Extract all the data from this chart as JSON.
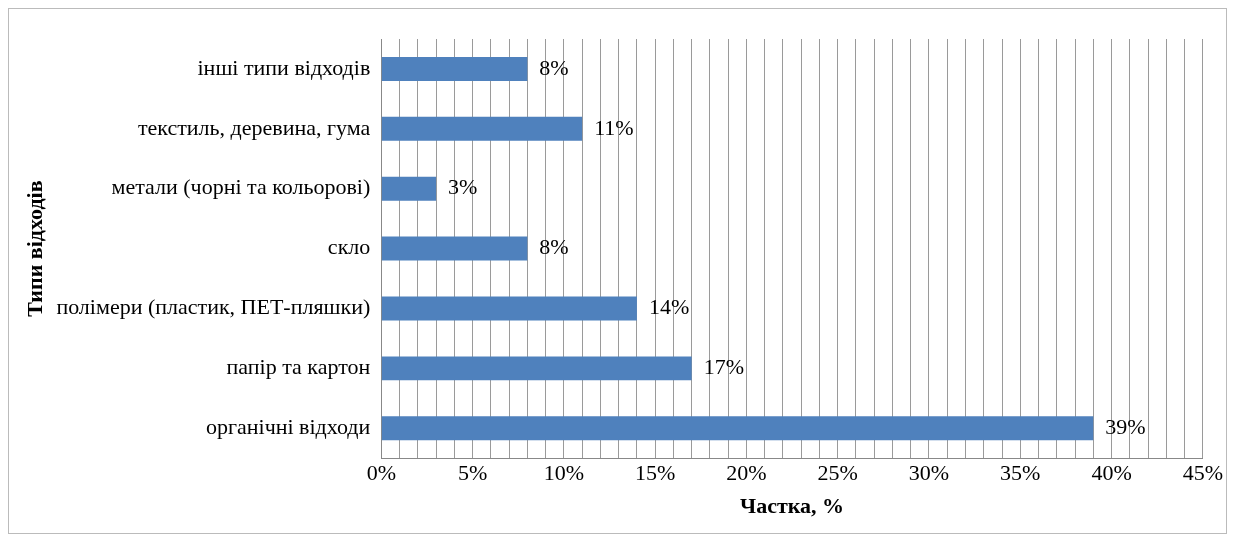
{
  "chart_data": {
    "type": "bar",
    "orientation": "horizontal",
    "xlabel": "Частка, %",
    "ylabel": "Типи відходів",
    "categories": [
      "інші типи відходів",
      "текстиль, деревина, гума",
      "метали (чорні та кольорові)",
      "скло",
      "полімери (пластик, ПЕТ-пляшки)",
      "папір та картон",
      "органічні відходи"
    ],
    "values": [
      8,
      11,
      3,
      8,
      14,
      17,
      39
    ],
    "value_labels": [
      "8%",
      "11%",
      "3%",
      "8%",
      "14%",
      "17%",
      "39%"
    ],
    "color": "#4f81bd",
    "xlim": [
      0,
      45
    ],
    "xticks": [
      {
        "value": 0,
        "label": "0%"
      },
      {
        "value": 1,
        "label": null
      },
      {
        "value": 2,
        "label": null
      },
      {
        "value": 3,
        "label": null
      },
      {
        "value": 4,
        "label": null
      },
      {
        "value": 5,
        "label": "5%"
      },
      {
        "value": 6,
        "label": null
      },
      {
        "value": 7,
        "label": null
      },
      {
        "value": 8,
        "label": null
      },
      {
        "value": 9,
        "label": null
      },
      {
        "value": 10,
        "label": "10%"
      },
      {
        "value": 11,
        "label": null
      },
      {
        "value": 12,
        "label": null
      },
      {
        "value": 13,
        "label": null
      },
      {
        "value": 14,
        "label": null
      },
      {
        "value": 15,
        "label": "15%"
      },
      {
        "value": 16,
        "label": null
      },
      {
        "value": 17,
        "label": null
      },
      {
        "value": 18,
        "label": null
      },
      {
        "value": 19,
        "label": null
      },
      {
        "value": 20,
        "label": "20%"
      },
      {
        "value": 21,
        "label": null
      },
      {
        "value": 22,
        "label": null
      },
      {
        "value": 23,
        "label": null
      },
      {
        "value": 24,
        "label": null
      },
      {
        "value": 25,
        "label": "25%"
      },
      {
        "value": 26,
        "label": null
      },
      {
        "value": 27,
        "label": null
      },
      {
        "value": 28,
        "label": null
      },
      {
        "value": 29,
        "label": null
      },
      {
        "value": 30,
        "label": "30%"
      },
      {
        "value": 31,
        "label": null
      },
      {
        "value": 32,
        "label": null
      },
      {
        "value": 33,
        "label": null
      },
      {
        "value": 34,
        "label": null
      },
      {
        "value": 35,
        "label": "35%"
      },
      {
        "value": 36,
        "label": null
      },
      {
        "value": 37,
        "label": null
      },
      {
        "value": 38,
        "label": null
      },
      {
        "value": 39,
        "label": null
      },
      {
        "value": 40,
        "label": "40%"
      },
      {
        "value": 41,
        "label": null
      },
      {
        "value": 42,
        "label": null
      },
      {
        "value": 43,
        "label": null
      },
      {
        "value": 44,
        "label": null
      },
      {
        "value": 45,
        "label": "45%"
      }
    ],
    "grid": true,
    "legend": false
  }
}
